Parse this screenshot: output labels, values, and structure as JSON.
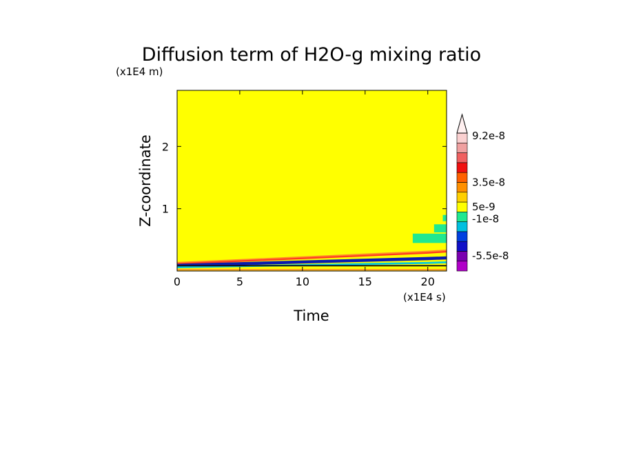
{
  "chart_data": {
    "type": "heatmap",
    "title": "Diffusion term of H2O-g mixing ratio",
    "xlabel": "Time",
    "ylabel": "Z-coordinate",
    "x_unit": "(x1E4 s)",
    "y_unit": "(x1E4 m)",
    "xlim": [
      0,
      21.5
    ],
    "ylim": [
      0,
      2.9
    ],
    "x_ticks": [
      "0",
      "5",
      "10",
      "15",
      "20"
    ],
    "x_tick_values": [
      0,
      5,
      10,
      15,
      20
    ],
    "y_ticks": [
      "1",
      "2"
    ],
    "y_tick_values": [
      1,
      2
    ],
    "background_color": "#ffff00",
    "colorbar": {
      "colors": [
        "#b000c8",
        "#7a00b0",
        "#1010c8",
        "#0040e0",
        "#00c0e0",
        "#20e890",
        "#ffff00",
        "#ffd000",
        "#ff9000",
        "#ff6000",
        "#f01010",
        "#f06060",
        "#f0a0a0",
        "#fad0d0"
      ],
      "labels": [
        "-5.5e-8",
        "-1e-8",
        "5e-9",
        "3.5e-8",
        "9.2e-8"
      ],
      "label_values": [
        -5.5e-08,
        -1e-08,
        5e-09,
        3.5e-08,
        9.2e-08
      ]
    },
    "bands": [
      {
        "color": "#ff8a2a",
        "x": [
          0,
          20,
          21.5
        ],
        "z": [
          0.13,
          0.31,
          0.33
        ],
        "thickness": 0.03
      },
      {
        "color": "#ff3a20",
        "x": [
          0,
          20,
          21.5
        ],
        "z": [
          0.115,
          0.29,
          0.31
        ],
        "thickness": 0.025
      },
      {
        "color": "#0a1ab0",
        "x": [
          0,
          20,
          21.5
        ],
        "z": [
          0.09,
          0.2,
          0.21
        ],
        "thickness": 0.05
      },
      {
        "color": "#00c8e0",
        "x": [
          0,
          20,
          21.5
        ],
        "z": [
          0.06,
          0.13,
          0.14
        ],
        "thickness": 0.03
      },
      {
        "color": "#101010",
        "x": [
          0,
          21.5
        ],
        "z": [
          0.085,
          0.085
        ],
        "thickness": 0.02
      },
      {
        "color": "#ff8a2a",
        "x": [
          0,
          21.5
        ],
        "z": [
          0.02,
          0.02
        ],
        "thickness": 0.02
      }
    ],
    "patches": [
      {
        "color": "#20e890",
        "x": [
          18.8,
          21.5
        ],
        "z": [
          0.45,
          0.6
        ]
      },
      {
        "color": "#20e890",
        "x": [
          20.5,
          21.5
        ],
        "z": [
          0.62,
          0.75
        ]
      },
      {
        "color": "#20e890",
        "x": [
          21.2,
          21.5
        ],
        "z": [
          0.8,
          0.9
        ]
      }
    ]
  }
}
